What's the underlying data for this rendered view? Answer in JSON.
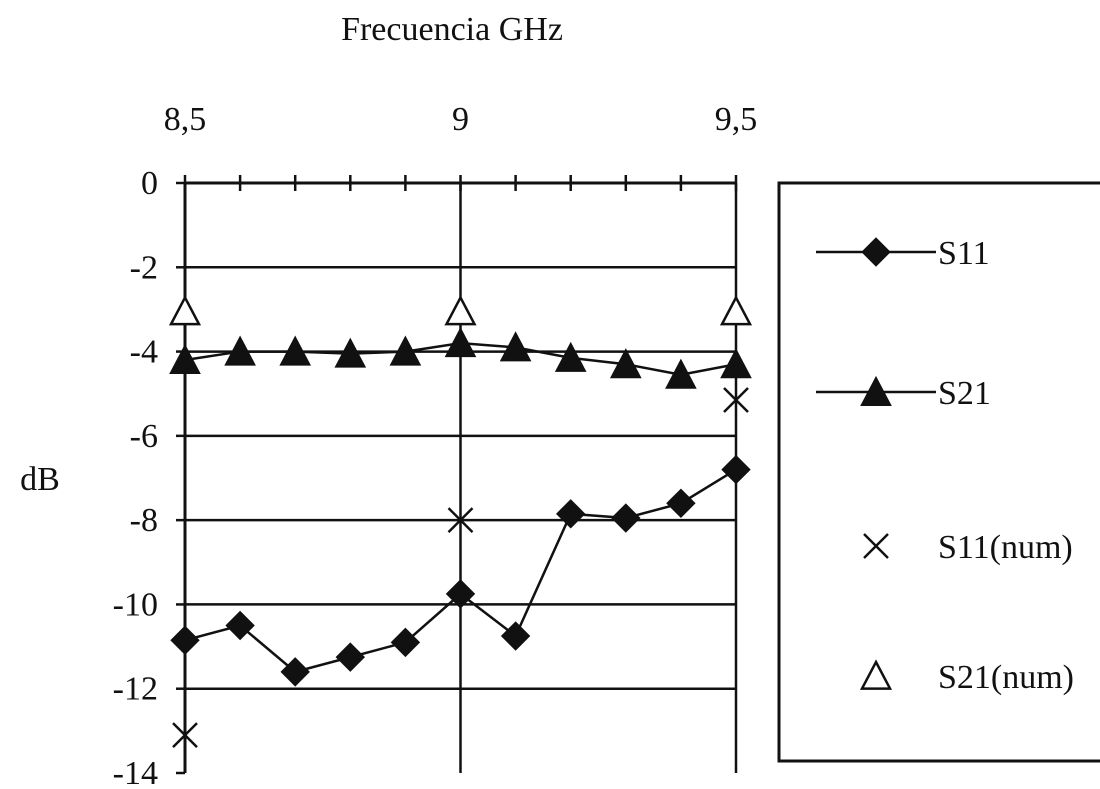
{
  "chart_data": {
    "type": "line",
    "title": "",
    "xlabel": "Frecuencia GHz",
    "ylabel": "dB",
    "xlim": [
      8.5,
      9.5
    ],
    "ylim": [
      -14,
      0
    ],
    "x_axis_position": "top",
    "x_ticks": [
      {
        "value": 8.5,
        "label": "8,5"
      },
      {
        "value": 9,
        "label": "9"
      },
      {
        "value": 9.5,
        "label": "9,5"
      }
    ],
    "y_ticks": [
      {
        "value": 0,
        "label": "0"
      },
      {
        "value": -2,
        "label": "-2"
      },
      {
        "value": -4,
        "label": "-4"
      },
      {
        "value": -6,
        "label": "-6"
      },
      {
        "value": -8,
        "label": "-8"
      },
      {
        "value": -10,
        "label": "-10"
      },
      {
        "value": -12,
        "label": "-12"
      },
      {
        "value": -14,
        "label": "-14"
      }
    ],
    "x_minor_step": 0.1,
    "grid": "horizontal major lines and vertical lines at 9 and 9,5",
    "legend_position": "right",
    "series": [
      {
        "name": "S11",
        "marker": "filled-diamond",
        "line": true,
        "x": [
          8.5,
          8.6,
          8.7,
          8.8,
          8.9,
          9.0,
          9.1,
          9.2,
          9.3,
          9.4,
          9.5
        ],
        "y": [
          -10.85,
          -10.5,
          -11.6,
          -11.25,
          -10.9,
          -9.75,
          -10.75,
          -7.85,
          -7.95,
          -7.6,
          -6.8
        ]
      },
      {
        "name": "S21",
        "marker": "filled-triangle",
        "line": true,
        "x": [
          8.5,
          8.6,
          8.7,
          8.8,
          8.9,
          9.0,
          9.1,
          9.2,
          9.3,
          9.4,
          9.5
        ],
        "y": [
          -4.2,
          -4.0,
          -4.0,
          -4.05,
          -4.0,
          -3.8,
          -3.9,
          -4.15,
          -4.3,
          -4.55,
          -4.3
        ]
      },
      {
        "name": "S11(num)",
        "marker": "x",
        "line": false,
        "x": [
          8.5,
          9.0,
          9.5
        ],
        "y": [
          -13.1,
          -8.0,
          -5.15
        ]
      },
      {
        "name": "S21(num)",
        "marker": "open-triangle",
        "line": false,
        "x": [
          8.5,
          9.0,
          9.5
        ],
        "y": [
          -3.05,
          -3.05,
          -3.05
        ]
      }
    ]
  }
}
